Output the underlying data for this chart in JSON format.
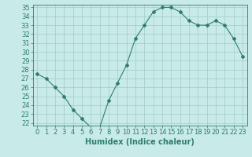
{
  "x": [
    0,
    1,
    2,
    3,
    4,
    5,
    6,
    7,
    8,
    9,
    10,
    11,
    12,
    13,
    14,
    15,
    16,
    17,
    18,
    19,
    20,
    21,
    22,
    23
  ],
  "y": [
    27.5,
    27.0,
    26.0,
    25.0,
    23.5,
    22.5,
    21.5,
    21.5,
    24.5,
    26.5,
    28.5,
    31.5,
    33.0,
    34.5,
    35.0,
    35.0,
    34.5,
    33.5,
    33.0,
    33.0,
    33.5,
    33.0,
    31.5,
    29.5
  ],
  "line_color": "#2e7d6e",
  "marker": "D",
  "marker_size": 2,
  "bg_color": "#c8eae8",
  "grid_color": "#a0ccc8",
  "xlabel": "Humidex (Indice chaleur)",
  "xlabel_fontsize": 7,
  "ytick_min": 22,
  "ytick_max": 35,
  "xtick_labels": [
    "0",
    "1",
    "2",
    "3",
    "4",
    "5",
    "6",
    "7",
    "8",
    "9",
    "10",
    "11",
    "12",
    "13",
    "14",
    "15",
    "16",
    "17",
    "18",
    "19",
    "20",
    "21",
    "22",
    "23"
  ],
  "tick_fontsize": 6,
  "tick_color": "#2e7d6e",
  "axis_color": "#2e7d6e"
}
